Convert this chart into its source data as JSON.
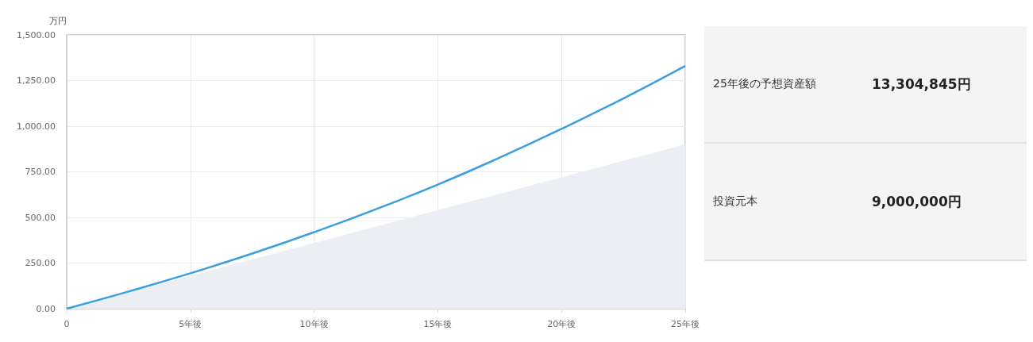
{
  "chart_data": [
    {
      "type": "line",
      "ylabel": "万円",
      "xlim": [
        0,
        25
      ],
      "xticks": [
        0,
        {
          "value": 5,
          "label": "5年後"
        },
        {
          "value": 10,
          "label": "10年後"
        },
        {
          "value": 15,
          "label": "15年後"
        },
        {
          "value": 20,
          "label": "20年後"
        },
        {
          "value": 25,
          "label": "25年後"
        }
      ],
      "ylim": [
        0,
        1500
      ],
      "yticks": [
        {
          "value": 0,
          "label": "0.00"
        },
        {
          "value": 250,
          "label": "250.00"
        },
        {
          "value": 500,
          "label": "500.00"
        },
        {
          "value": 750,
          "label": "750.00"
        },
        {
          "value": 1000,
          "label": "1,000.00"
        },
        {
          "value": 1250,
          "label": "1,250.00"
        },
        {
          "value": 1500,
          "label": "1,500.00"
        }
      ],
      "grid": true,
      "series": [
        {
          "type": "area",
          "color": "#ebeef3",
          "x": [
            0,
            5,
            10,
            15,
            20,
            25
          ],
          "values": [
            0,
            180,
            360,
            540,
            720,
            900
          ]
        },
        {
          "type": "line",
          "color": "#3a9ee0",
          "x": [
            0,
            2.5,
            5,
            7.5,
            10,
            12.5,
            15,
            17.5,
            20,
            22.5,
            25
          ],
          "values": [
            0,
            94,
            194,
            302,
            419,
            545,
            680,
            828,
            985,
            1152,
            1330
          ]
        }
      ]
    },
    {
      "type": "other",
      "annotations": [
        "25年後の予想資産額",
        "13,304,845円",
        "投資元本",
        "9,000,000円"
      ]
    }
  ]
}
